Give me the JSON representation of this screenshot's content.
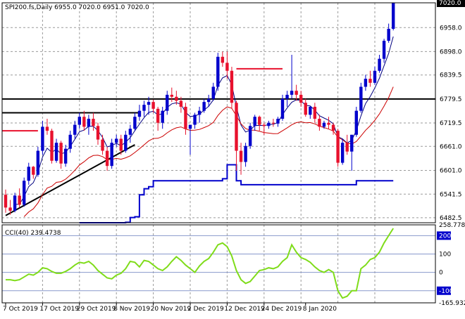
{
  "chart_data": [
    {
      "type": "candlestick",
      "title": "SPI200.fs,Daily  6955.0 7020.0 6951.0 7020.0",
      "price_ticks": [
        "7020.0",
        "6958.0",
        "6898.0",
        "6839.5",
        "6779.5",
        "6719.5",
        "6661.0",
        "6601.0",
        "6541.5",
        "6482.5"
      ],
      "last_price": "7020.0",
      "date_ticks": [
        "7 Oct 2019",
        "17 Oct 2019",
        "29 Oct 2019",
        "8 Nov 2019",
        "20 Nov 2019",
        "2 Dec 2019",
        "12 Dec 2019",
        "24 Dec 2019",
        "8 Jan 2020"
      ],
      "ylim": [
        6470,
        7020
      ],
      "candles": [
        [
          6540,
          6553,
          6495,
          6508
        ],
        [
          6508,
          6527,
          6490,
          6500
        ],
        [
          6500,
          6545,
          6496,
          6538
        ],
        [
          6538,
          6556,
          6508,
          6515
        ],
        [
          6515,
          6583,
          6510,
          6575
        ],
        [
          6575,
          6620,
          6565,
          6610
        ],
        [
          6610,
          6612,
          6580,
          6590
        ],
        [
          6590,
          6660,
          6585,
          6650
        ],
        [
          6650,
          6725,
          6640,
          6710
        ],
        [
          6710,
          6730,
          6690,
          6700
        ],
        [
          6700,
          6705,
          6618,
          6625
        ],
        [
          6625,
          6680,
          6620,
          6670
        ],
        [
          6670,
          6675,
          6605,
          6618
        ],
        [
          6618,
          6665,
          6610,
          6655
        ],
        [
          6655,
          6700,
          6645,
          6690
        ],
        [
          6690,
          6725,
          6680,
          6715
        ],
        [
          6715,
          6745,
          6705,
          6735
        ],
        [
          6735,
          6750,
          6700,
          6710
        ],
        [
          6710,
          6740,
          6690,
          6730
        ],
        [
          6730,
          6745,
          6700,
          6712
        ],
        [
          6712,
          6720,
          6665,
          6678
        ],
        [
          6678,
          6690,
          6640,
          6650
        ],
        [
          6650,
          6660,
          6600,
          6612
        ],
        [
          6612,
          6680,
          6605,
          6670
        ],
        [
          6670,
          6690,
          6660,
          6680
        ],
        [
          6680,
          6690,
          6640,
          6650
        ],
        [
          6650,
          6700,
          6645,
          6690
        ],
        [
          6690,
          6715,
          6670,
          6705
        ],
        [
          6705,
          6745,
          6700,
          6735
        ],
        [
          6735,
          6765,
          6725,
          6750
        ],
        [
          6750,
          6775,
          6735,
          6765
        ],
        [
          6765,
          6785,
          6740,
          6772
        ],
        [
          6772,
          6778,
          6745,
          6755
        ],
        [
          6755,
          6760,
          6700,
          6720
        ],
        [
          6720,
          6760,
          6705,
          6750
        ],
        [
          6750,
          6800,
          6740,
          6790
        ],
        [
          6790,
          6808,
          6772,
          6785
        ],
        [
          6785,
          6800,
          6765,
          6775
        ],
        [
          6775,
          6785,
          6745,
          6760
        ],
        [
          6760,
          6770,
          6690,
          6705
        ],
        [
          6705,
          6715,
          6640,
          6715
        ],
        [
          6715,
          6745,
          6705,
          6740
        ],
        [
          6740,
          6760,
          6720,
          6750
        ],
        [
          6750,
          6780,
          6745,
          6772
        ],
        [
          6772,
          6790,
          6760,
          6780
        ],
        [
          6780,
          6820,
          6775,
          6810
        ],
        [
          6810,
          6895,
          6800,
          6885
        ],
        [
          6885,
          6898,
          6860,
          6870
        ],
        [
          6870,
          6898,
          6830,
          6850
        ],
        [
          6850,
          6860,
          6755,
          6770
        ],
        [
          6770,
          6775,
          6600,
          6650
        ],
        [
          6650,
          6670,
          6590,
          6622
        ],
        [
          6622,
          6670,
          6610,
          6662
        ],
        [
          6662,
          6720,
          6655,
          6712
        ],
        [
          6712,
          6740,
          6700,
          6735
        ],
        [
          6735,
          6738,
          6700,
          6715
        ],
        [
          6715,
          6720,
          6690,
          6712
        ],
        [
          6712,
          6725,
          6705,
          6720
        ],
        [
          6720,
          6730,
          6710,
          6718
        ],
        [
          6718,
          6735,
          6710,
          6730
        ],
        [
          6730,
          6790,
          6725,
          6780
        ],
        [
          6780,
          6800,
          6760,
          6790
        ],
        [
          6790,
          6890,
          6780,
          6800
        ],
        [
          6800,
          6815,
          6775,
          6790
        ],
        [
          6790,
          6800,
          6760,
          6770
        ],
        [
          6770,
          6780,
          6735,
          6740
        ],
        [
          6740,
          6762,
          6730,
          6760
        ],
        [
          6760,
          6770,
          6720,
          6730
        ],
        [
          6730,
          6740,
          6700,
          6710
        ],
        [
          6710,
          6725,
          6705,
          6720
        ],
        [
          6720,
          6735,
          6705,
          6715
        ],
        [
          6715,
          6720,
          6690,
          6700
        ],
        [
          6700,
          6705,
          6610,
          6620
        ],
        [
          6620,
          6680,
          6615,
          6670
        ],
        [
          6670,
          6690,
          6640,
          6648
        ],
        [
          6648,
          6690,
          6600,
          6690
        ],
        [
          6690,
          6760,
          6685,
          6750
        ],
        [
          6750,
          6820,
          6745,
          6810
        ],
        [
          6810,
          6840,
          6800,
          6830
        ],
        [
          6830,
          6850,
          6810,
          6820
        ],
        [
          6820,
          6860,
          6815,
          6850
        ],
        [
          6850,
          6890,
          6845,
          6880
        ],
        [
          6880,
          6930,
          6870,
          6925
        ],
        [
          6925,
          6968,
          6920,
          6955
        ],
        [
          6955,
          7020,
          6951,
          7020
        ]
      ],
      "indicator": {
        "title": "CCI(40) 239.4738",
        "ticks": [
          "258.7789",
          "200",
          "100",
          "0",
          "-100",
          "-165.9320"
        ],
        "ylim": [
          -165.932,
          258.7789
        ],
        "values": [
          -40,
          -40,
          -45,
          -40,
          -25,
          -10,
          -15,
          0,
          25,
          20,
          5,
          -5,
          -5,
          5,
          20,
          40,
          55,
          50,
          60,
          40,
          10,
          -10,
          -30,
          -35,
          -15,
          -5,
          20,
          60,
          55,
          30,
          65,
          60,
          40,
          20,
          10,
          30,
          60,
          85,
          65,
          40,
          20,
          0,
          35,
          60,
          75,
          110,
          150,
          160,
          140,
          90,
          10,
          -40,
          -60,
          -50,
          -20,
          10,
          15,
          25,
          20,
          30,
          60,
          80,
          150,
          110,
          80,
          70,
          55,
          30,
          10,
          0,
          15,
          0,
          -100,
          -140,
          -130,
          -100,
          -100,
          20,
          40,
          70,
          80,
          110,
          160,
          200,
          239.47
        ]
      },
      "annotations": {
        "horizontal_levels": [
          6779.5,
          6855
        ],
        "support_trend": [
          [
            0,
            6488
          ],
          [
            28,
            6665
          ]
        ]
      }
    }
  ]
}
